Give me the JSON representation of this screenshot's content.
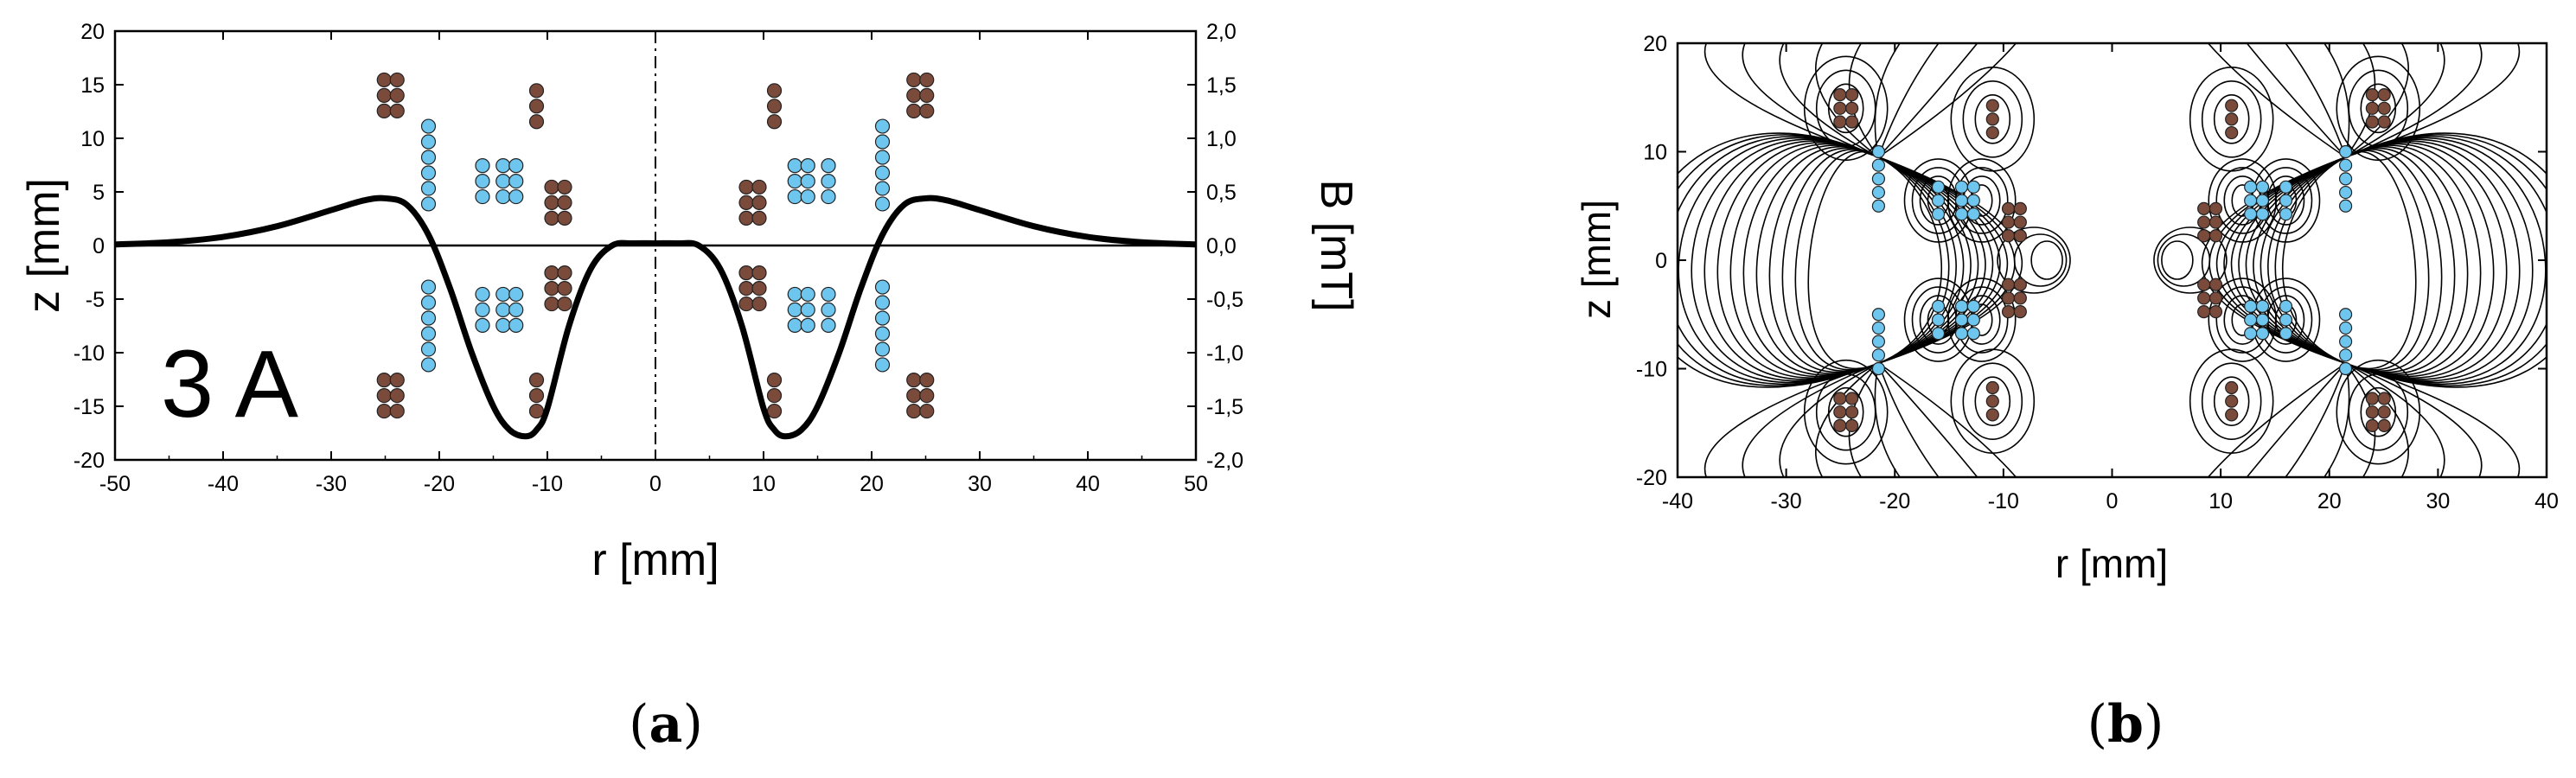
{
  "chart_data": [
    {
      "type": "line",
      "panel_label": "(a)",
      "annotation": "3 A",
      "xlabel": "r [mm]",
      "ylabel": "z [mm]",
      "y2label": "B [mT]",
      "xlim": [
        -50,
        50
      ],
      "ylim": [
        -20,
        20
      ],
      "y2lim": [
        -2.0,
        2.0
      ],
      "xticks": [
        "-50",
        "-40",
        "-30",
        "-20",
        "-10",
        "0",
        "10",
        "20",
        "30",
        "40",
        "50"
      ],
      "yticks": [
        "-20",
        "-15",
        "-10",
        "-5",
        "0",
        "5",
        "10",
        "15",
        "20"
      ],
      "y2ticks": [
        "-2,0",
        "-1,5",
        "-1,0",
        "-0,5",
        "0,0",
        "0,5",
        "1,0",
        "1,5",
        "2,0"
      ],
      "series": [
        {
          "kind": "field_profile_B",
          "x": [
            -50,
            -45,
            -40,
            -35,
            -30,
            -27,
            -25,
            -23,
            -21,
            -19,
            -17,
            -15,
            -13.5,
            -12,
            -11,
            -10,
            -8,
            -6,
            -4,
            -2,
            0,
            2,
            4,
            6,
            8,
            10,
            11,
            12,
            13.5,
            15,
            17,
            19,
            21,
            23,
            25,
            27,
            30,
            35,
            40,
            45,
            50
          ],
          "y_mT": [
            0.01,
            0.03,
            0.08,
            0.18,
            0.33,
            0.42,
            0.44,
            0.38,
            0.1,
            -0.4,
            -1.0,
            -1.5,
            -1.72,
            -1.78,
            -1.72,
            -1.52,
            -0.75,
            -0.22,
            0.0,
            0.02,
            0.02,
            0.02,
            0.0,
            -0.22,
            -0.75,
            -1.52,
            -1.72,
            -1.78,
            -1.72,
            -1.5,
            -1.0,
            -0.4,
            0.1,
            0.38,
            0.44,
            0.42,
            0.33,
            0.18,
            0.08,
            0.03,
            0.01
          ]
        }
      ],
      "coils": {
        "brown": [
          {
            "r": -24.5,
            "z": 14,
            "cols": 2,
            "rows": 3
          },
          {
            "r": -24.5,
            "z": -14,
            "cols": 2,
            "rows": 3
          },
          {
            "r": -11,
            "z": 13,
            "cols": 1,
            "rows": 3
          },
          {
            "r": -11,
            "z": -14,
            "cols": 1,
            "rows": 3
          },
          {
            "r": -9,
            "z": 4,
            "cols": 2,
            "rows": 3
          },
          {
            "r": -9,
            "z": -4,
            "cols": 2,
            "rows": 3
          },
          {
            "r": 24.5,
            "z": 14,
            "cols": 2,
            "rows": 3
          },
          {
            "r": 24.5,
            "z": -14,
            "cols": 2,
            "rows": 3
          },
          {
            "r": 11,
            "z": 13,
            "cols": 1,
            "rows": 3
          },
          {
            "r": 11,
            "z": -14,
            "cols": 1,
            "rows": 3
          },
          {
            "r": 9,
            "z": 4,
            "cols": 2,
            "rows": 3
          },
          {
            "r": 9,
            "z": -4,
            "cols": 2,
            "rows": 3
          }
        ],
        "blue": [
          {
            "r": -21,
            "z": 7.5,
            "cols": 1,
            "rows": 6
          },
          {
            "r": -21,
            "z": -7.5,
            "cols": 1,
            "rows": 6
          },
          {
            "r": -16,
            "z": 6,
            "cols": 1,
            "rows": 3
          },
          {
            "r": -16,
            "z": -6,
            "cols": 1,
            "rows": 3
          },
          {
            "r": -13.5,
            "z": 6,
            "cols": 2,
            "rows": 3
          },
          {
            "r": -13.5,
            "z": -6,
            "cols": 2,
            "rows": 3
          },
          {
            "r": 21,
            "z": 7.5,
            "cols": 1,
            "rows": 6
          },
          {
            "r": 21,
            "z": -7.5,
            "cols": 1,
            "rows": 6
          },
          {
            "r": 16,
            "z": 6,
            "cols": 1,
            "rows": 3
          },
          {
            "r": 16,
            "z": -6,
            "cols": 1,
            "rows": 3
          },
          {
            "r": 13.5,
            "z": 6,
            "cols": 2,
            "rows": 3
          },
          {
            "r": 13.5,
            "z": -6,
            "cols": 2,
            "rows": 3
          }
        ]
      }
    },
    {
      "type": "contour",
      "panel_label": "(b)",
      "xlabel": "r [mm]",
      "ylabel": "z [mm]",
      "xlim": [
        -40,
        40
      ],
      "ylim": [
        -20,
        20
      ],
      "xticks": [
        "-40",
        "-30",
        "-20",
        "-10",
        "0",
        "10",
        "20",
        "30",
        "40"
      ],
      "yticks": [
        "-20",
        "-10",
        "0",
        "10",
        "20"
      ],
      "coils": {
        "brown": [
          {
            "r": -24.5,
            "z": 14,
            "cols": 2,
            "rows": 3
          },
          {
            "r": -24.5,
            "z": -14,
            "cols": 2,
            "rows": 3
          },
          {
            "r": -11,
            "z": 13,
            "cols": 1,
            "rows": 3
          },
          {
            "r": -11,
            "z": -13,
            "cols": 1,
            "rows": 3
          },
          {
            "r": -9,
            "z": 3.5,
            "cols": 2,
            "rows": 3
          },
          {
            "r": -9,
            "z": -3.5,
            "cols": 2,
            "rows": 3
          },
          {
            "r": 24.5,
            "z": 14,
            "cols": 2,
            "rows": 3
          },
          {
            "r": 24.5,
            "z": -14,
            "cols": 2,
            "rows": 3
          },
          {
            "r": 11,
            "z": 13,
            "cols": 1,
            "rows": 3
          },
          {
            "r": 11,
            "z": -13,
            "cols": 1,
            "rows": 3
          },
          {
            "r": 9,
            "z": 3.5,
            "cols": 2,
            "rows": 3
          },
          {
            "r": 9,
            "z": -3.5,
            "cols": 2,
            "rows": 3
          }
        ],
        "blue": [
          {
            "r": -21.5,
            "z": 7.5,
            "cols": 1,
            "rows": 5
          },
          {
            "r": -21.5,
            "z": -7.5,
            "cols": 1,
            "rows": 5
          },
          {
            "r": -16,
            "z": 5.5,
            "cols": 1,
            "rows": 3
          },
          {
            "r": -16,
            "z": -5.5,
            "cols": 1,
            "rows": 3
          },
          {
            "r": -13.3,
            "z": 5.5,
            "cols": 2,
            "rows": 3
          },
          {
            "r": -13.3,
            "z": -5.5,
            "cols": 2,
            "rows": 3
          },
          {
            "r": 21.5,
            "z": 7.5,
            "cols": 1,
            "rows": 5
          },
          {
            "r": 21.5,
            "z": -7.5,
            "cols": 1,
            "rows": 5
          },
          {
            "r": 16,
            "z": 5.5,
            "cols": 1,
            "rows": 3
          },
          {
            "r": 16,
            "z": -5.5,
            "cols": 1,
            "rows": 3
          },
          {
            "r": 13.3,
            "z": 5.5,
            "cols": 2,
            "rows": 3
          },
          {
            "r": 13.3,
            "z": -5.5,
            "cols": 2,
            "rows": 3
          }
        ]
      }
    }
  ],
  "colors": {
    "brown_coil": "#7a4a3a",
    "blue_coil": "#6ec6ee",
    "axis": "#000000"
  }
}
